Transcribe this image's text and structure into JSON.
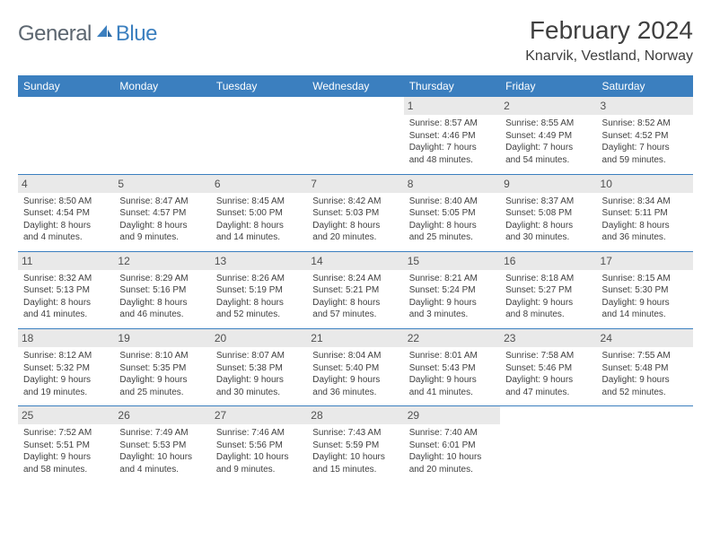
{
  "logo": {
    "word1": "General",
    "word2": "Blue"
  },
  "title": "February 2024",
  "location": "Knarvik, Vestland, Norway",
  "colors": {
    "header_bg": "#3b7fbf",
    "header_text": "#ffffff",
    "daynum_bg": "#e9e9e9",
    "text": "#404040",
    "logo_gray": "#5c6670",
    "logo_blue": "#3b7fbf",
    "row_border": "#3b7fbf",
    "page_bg": "#ffffff"
  },
  "day_headers": [
    "Sunday",
    "Monday",
    "Tuesday",
    "Wednesday",
    "Thursday",
    "Friday",
    "Saturday"
  ],
  "weeks": [
    [
      null,
      null,
      null,
      null,
      {
        "n": "1",
        "sr": "Sunrise: 8:57 AM",
        "ss": "Sunset: 4:46 PM",
        "dl1": "Daylight: 7 hours",
        "dl2": "and 48 minutes."
      },
      {
        "n": "2",
        "sr": "Sunrise: 8:55 AM",
        "ss": "Sunset: 4:49 PM",
        "dl1": "Daylight: 7 hours",
        "dl2": "and 54 minutes."
      },
      {
        "n": "3",
        "sr": "Sunrise: 8:52 AM",
        "ss": "Sunset: 4:52 PM",
        "dl1": "Daylight: 7 hours",
        "dl2": "and 59 minutes."
      }
    ],
    [
      {
        "n": "4",
        "sr": "Sunrise: 8:50 AM",
        "ss": "Sunset: 4:54 PM",
        "dl1": "Daylight: 8 hours",
        "dl2": "and 4 minutes."
      },
      {
        "n": "5",
        "sr": "Sunrise: 8:47 AM",
        "ss": "Sunset: 4:57 PM",
        "dl1": "Daylight: 8 hours",
        "dl2": "and 9 minutes."
      },
      {
        "n": "6",
        "sr": "Sunrise: 8:45 AM",
        "ss": "Sunset: 5:00 PM",
        "dl1": "Daylight: 8 hours",
        "dl2": "and 14 minutes."
      },
      {
        "n": "7",
        "sr": "Sunrise: 8:42 AM",
        "ss": "Sunset: 5:03 PM",
        "dl1": "Daylight: 8 hours",
        "dl2": "and 20 minutes."
      },
      {
        "n": "8",
        "sr": "Sunrise: 8:40 AM",
        "ss": "Sunset: 5:05 PM",
        "dl1": "Daylight: 8 hours",
        "dl2": "and 25 minutes."
      },
      {
        "n": "9",
        "sr": "Sunrise: 8:37 AM",
        "ss": "Sunset: 5:08 PM",
        "dl1": "Daylight: 8 hours",
        "dl2": "and 30 minutes."
      },
      {
        "n": "10",
        "sr": "Sunrise: 8:34 AM",
        "ss": "Sunset: 5:11 PM",
        "dl1": "Daylight: 8 hours",
        "dl2": "and 36 minutes."
      }
    ],
    [
      {
        "n": "11",
        "sr": "Sunrise: 8:32 AM",
        "ss": "Sunset: 5:13 PM",
        "dl1": "Daylight: 8 hours",
        "dl2": "and 41 minutes."
      },
      {
        "n": "12",
        "sr": "Sunrise: 8:29 AM",
        "ss": "Sunset: 5:16 PM",
        "dl1": "Daylight: 8 hours",
        "dl2": "and 46 minutes."
      },
      {
        "n": "13",
        "sr": "Sunrise: 8:26 AM",
        "ss": "Sunset: 5:19 PM",
        "dl1": "Daylight: 8 hours",
        "dl2": "and 52 minutes."
      },
      {
        "n": "14",
        "sr": "Sunrise: 8:24 AM",
        "ss": "Sunset: 5:21 PM",
        "dl1": "Daylight: 8 hours",
        "dl2": "and 57 minutes."
      },
      {
        "n": "15",
        "sr": "Sunrise: 8:21 AM",
        "ss": "Sunset: 5:24 PM",
        "dl1": "Daylight: 9 hours",
        "dl2": "and 3 minutes."
      },
      {
        "n": "16",
        "sr": "Sunrise: 8:18 AM",
        "ss": "Sunset: 5:27 PM",
        "dl1": "Daylight: 9 hours",
        "dl2": "and 8 minutes."
      },
      {
        "n": "17",
        "sr": "Sunrise: 8:15 AM",
        "ss": "Sunset: 5:30 PM",
        "dl1": "Daylight: 9 hours",
        "dl2": "and 14 minutes."
      }
    ],
    [
      {
        "n": "18",
        "sr": "Sunrise: 8:12 AM",
        "ss": "Sunset: 5:32 PM",
        "dl1": "Daylight: 9 hours",
        "dl2": "and 19 minutes."
      },
      {
        "n": "19",
        "sr": "Sunrise: 8:10 AM",
        "ss": "Sunset: 5:35 PM",
        "dl1": "Daylight: 9 hours",
        "dl2": "and 25 minutes."
      },
      {
        "n": "20",
        "sr": "Sunrise: 8:07 AM",
        "ss": "Sunset: 5:38 PM",
        "dl1": "Daylight: 9 hours",
        "dl2": "and 30 minutes."
      },
      {
        "n": "21",
        "sr": "Sunrise: 8:04 AM",
        "ss": "Sunset: 5:40 PM",
        "dl1": "Daylight: 9 hours",
        "dl2": "and 36 minutes."
      },
      {
        "n": "22",
        "sr": "Sunrise: 8:01 AM",
        "ss": "Sunset: 5:43 PM",
        "dl1": "Daylight: 9 hours",
        "dl2": "and 41 minutes."
      },
      {
        "n": "23",
        "sr": "Sunrise: 7:58 AM",
        "ss": "Sunset: 5:46 PM",
        "dl1": "Daylight: 9 hours",
        "dl2": "and 47 minutes."
      },
      {
        "n": "24",
        "sr": "Sunrise: 7:55 AM",
        "ss": "Sunset: 5:48 PM",
        "dl1": "Daylight: 9 hours",
        "dl2": "and 52 minutes."
      }
    ],
    [
      {
        "n": "25",
        "sr": "Sunrise: 7:52 AM",
        "ss": "Sunset: 5:51 PM",
        "dl1": "Daylight: 9 hours",
        "dl2": "and 58 minutes."
      },
      {
        "n": "26",
        "sr": "Sunrise: 7:49 AM",
        "ss": "Sunset: 5:53 PM",
        "dl1": "Daylight: 10 hours",
        "dl2": "and 4 minutes."
      },
      {
        "n": "27",
        "sr": "Sunrise: 7:46 AM",
        "ss": "Sunset: 5:56 PM",
        "dl1": "Daylight: 10 hours",
        "dl2": "and 9 minutes."
      },
      {
        "n": "28",
        "sr": "Sunrise: 7:43 AM",
        "ss": "Sunset: 5:59 PM",
        "dl1": "Daylight: 10 hours",
        "dl2": "and 15 minutes."
      },
      {
        "n": "29",
        "sr": "Sunrise: 7:40 AM",
        "ss": "Sunset: 6:01 PM",
        "dl1": "Daylight: 10 hours",
        "dl2": "and 20 minutes."
      },
      null,
      null
    ]
  ]
}
